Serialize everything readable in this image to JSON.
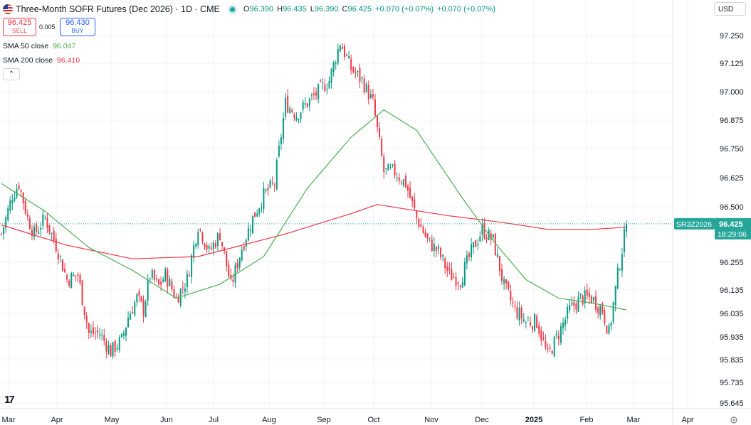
{
  "header": {
    "title": "Three-Month SOFR Futures (Dec 2026) · 1D · CME",
    "ohlc": {
      "o_label": "O",
      "o": "96.390",
      "h_label": "H",
      "h": "96.435",
      "l_label": "L",
      "l": "96.390",
      "c_label": "C",
      "c": "96.425",
      "chg": "+0.070 (+0.07%)",
      "chg2": "+0.070 (+0.07%)"
    }
  },
  "trade": {
    "sell_price": "96.425",
    "sell_label": "SELL",
    "spread": "0.005",
    "buy_price": "96.430",
    "buy_label": "BUY"
  },
  "indicators": [
    {
      "label": "SMA 50 close",
      "value": "96.047",
      "color": "#4caf50"
    },
    {
      "label": "SMA 200 close",
      "value": "96.410",
      "color": "#f23645"
    }
  ],
  "currency": "USD",
  "price_tag": {
    "symbol": "SR3Z2026",
    "price": "96.425",
    "countdown": "18:29:06"
  },
  "colors": {
    "up": "#089981",
    "down": "#f23645",
    "sma50": "#4caf50",
    "sma200": "#f23645",
    "tag_bg": "#26a69a"
  },
  "chart_data": {
    "type": "candlestick",
    "title": "Three-Month SOFR Futures (Dec 2026) · 1D · CME",
    "y_ticks": [
      "97.250",
      "97.125",
      "97.000",
      "96.875",
      "96.750",
      "96.625",
      "96.500",
      "96.255",
      "96.135",
      "96.035",
      "95.935",
      "95.835",
      "95.735",
      "95.645"
    ],
    "x_ticks": [
      "Mar",
      "Apr",
      "May",
      "Jun",
      "Jul",
      "Aug",
      "Sep",
      "Oct",
      "Nov",
      "Dec",
      "2025",
      "Feb",
      "Mar",
      "Apr"
    ],
    "last_price": 96.425,
    "series": [
      {
        "name": "Price",
        "close": [
          [
            0,
            96.38
          ],
          [
            5,
            96.55
          ],
          [
            8,
            96.6
          ],
          [
            12,
            96.45
          ],
          [
            15,
            96.38
          ],
          [
            20,
            96.45
          ],
          [
            25,
            96.33
          ],
          [
            30,
            96.18
          ],
          [
            35,
            96.2
          ],
          [
            40,
            95.95
          ],
          [
            45,
            95.95
          ],
          [
            50,
            95.87
          ],
          [
            55,
            95.92
          ],
          [
            58,
            96.02
          ],
          [
            62,
            96.1
          ],
          [
            65,
            96.05
          ],
          [
            68,
            96.2
          ],
          [
            72,
            96.15
          ],
          [
            75,
            96.2
          ],
          [
            80,
            96.1
          ],
          [
            85,
            96.18
          ],
          [
            90,
            96.42
          ],
          [
            95,
            96.3
          ],
          [
            100,
            96.38
          ],
          [
            105,
            96.15
          ],
          [
            110,
            96.32
          ],
          [
            115,
            96.45
          ],
          [
            120,
            96.55
          ],
          [
            125,
            96.6
          ],
          [
            130,
            96.95
          ],
          [
            135,
            96.9
          ],
          [
            140,
            96.95
          ],
          [
            145,
            97.0
          ],
          [
            150,
            97.05
          ],
          [
            155,
            97.22
          ],
          [
            160,
            97.1
          ],
          [
            165,
            97.05
          ],
          [
            170,
            96.95
          ],
          [
            175,
            96.65
          ],
          [
            180,
            96.65
          ],
          [
            185,
            96.6
          ],
          [
            190,
            96.45
          ],
          [
            195,
            96.35
          ],
          [
            200,
            96.3
          ],
          [
            205,
            96.2
          ],
          [
            210,
            96.18
          ],
          [
            215,
            96.3
          ],
          [
            220,
            96.4
          ],
          [
            225,
            96.35
          ],
          [
            230,
            96.15
          ],
          [
            235,
            96.05
          ],
          [
            240,
            96.0
          ],
          [
            245,
            96.0
          ],
          [
            250,
            95.85
          ],
          [
            255,
            95.95
          ],
          [
            260,
            96.05
          ],
          [
            265,
            96.1
          ],
          [
            270,
            96.1
          ],
          [
            275,
            96.05
          ],
          [
            278,
            95.95
          ],
          [
            282,
            96.2
          ],
          [
            286,
            96.425
          ]
        ]
      },
      {
        "name": "SMA 50 close",
        "points": [
          [
            0,
            96.6
          ],
          [
            20,
            96.48
          ],
          [
            40,
            96.32
          ],
          [
            60,
            96.22
          ],
          [
            80,
            96.1
          ],
          [
            100,
            96.16
          ],
          [
            120,
            96.28
          ],
          [
            140,
            96.58
          ],
          [
            160,
            96.8
          ],
          [
            175,
            96.92
          ],
          [
            190,
            96.83
          ],
          [
            210,
            96.55
          ],
          [
            225,
            96.35
          ],
          [
            240,
            96.18
          ],
          [
            255,
            96.1
          ],
          [
            270,
            96.08
          ],
          [
            286,
            96.05
          ]
        ]
      },
      {
        "name": "SMA 200 close",
        "points": [
          [
            0,
            96.42
          ],
          [
            30,
            96.33
          ],
          [
            60,
            96.27
          ],
          [
            90,
            96.28
          ],
          [
            130,
            96.38
          ],
          [
            160,
            96.47
          ],
          [
            172,
            96.51
          ],
          [
            185,
            96.49
          ],
          [
            205,
            96.46
          ],
          [
            230,
            96.43
          ],
          [
            250,
            96.4
          ],
          [
            270,
            96.4
          ],
          [
            286,
            96.41
          ]
        ]
      }
    ]
  }
}
